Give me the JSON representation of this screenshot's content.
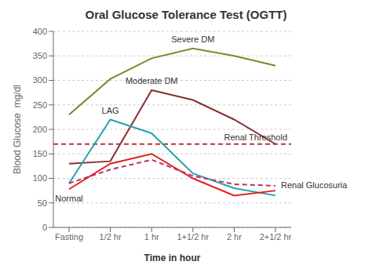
{
  "chart_data": {
    "type": "line",
    "title": "Oral Glucose Tolerance Test (OGTT)",
    "xlabel": "Time in hour",
    "ylabel": "Blood Glucose  mg/dl",
    "categories": [
      "Fasting",
      "1/2 hr",
      "1 hr",
      "1+1/2 hr",
      "2 hr",
      "2+1/2 hr"
    ],
    "series": [
      {
        "name": "Severe DM",
        "color": "#7a8a2a",
        "values": [
          230,
          303,
          345,
          365,
          350,
          330
        ]
      },
      {
        "name": "Moderate DM",
        "color": "#8b3030",
        "values": [
          130,
          135,
          280,
          260,
          220,
          170
        ]
      },
      {
        "name": "LAG",
        "color": "#2aa0b0",
        "values": [
          90,
          220,
          192,
          110,
          80,
          65
        ]
      },
      {
        "name": "Normal",
        "color": "#e02020",
        "values": [
          78,
          130,
          150,
          100,
          65,
          75
        ]
      },
      {
        "name": "Renal Glucosuria",
        "color": "#c03060",
        "line_style": "dashed",
        "values": [
          90,
          118,
          138,
          105,
          88,
          85
        ]
      }
    ],
    "hlines": [
      {
        "name": "Renal Threshold",
        "value": 170,
        "color": "#c03030",
        "line_style": "dashed"
      }
    ],
    "ylim": [
      0,
      400
    ],
    "yticks": [
      0,
      50,
      100,
      150,
      200,
      250,
      300,
      350,
      400
    ],
    "grid": true
  }
}
